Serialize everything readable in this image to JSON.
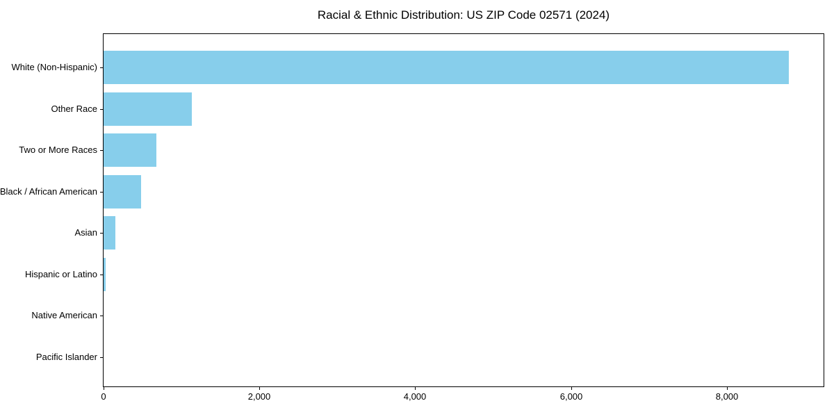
{
  "colors": {
    "bar": "#87CEEB",
    "axis": "#000000",
    "text": "#000000",
    "background": "#FFFFFF"
  },
  "chart_data": {
    "type": "bar",
    "orientation": "horizontal",
    "title": "Racial & Ethnic Distribution: US ZIP Code 02571 (2024)",
    "categories": [
      "White (Non-Hispanic)",
      "Other Race",
      "Two or More Races",
      "Black / African American",
      "Asian",
      "Hispanic or Latino",
      "Native American",
      "Pacific Islander"
    ],
    "values": [
      8790,
      1130,
      680,
      480,
      150,
      30,
      0,
      0
    ],
    "xlabel": "",
    "ylabel": "",
    "xlim": [
      0,
      9240
    ],
    "x_ticks": {
      "values": [
        0,
        2000,
        4000,
        6000,
        8000
      ],
      "labels": [
        "0",
        "2,000",
        "4,000",
        "6,000",
        "8,000"
      ]
    },
    "grid": false,
    "legend": null,
    "bar_color": "#87CEEB"
  }
}
